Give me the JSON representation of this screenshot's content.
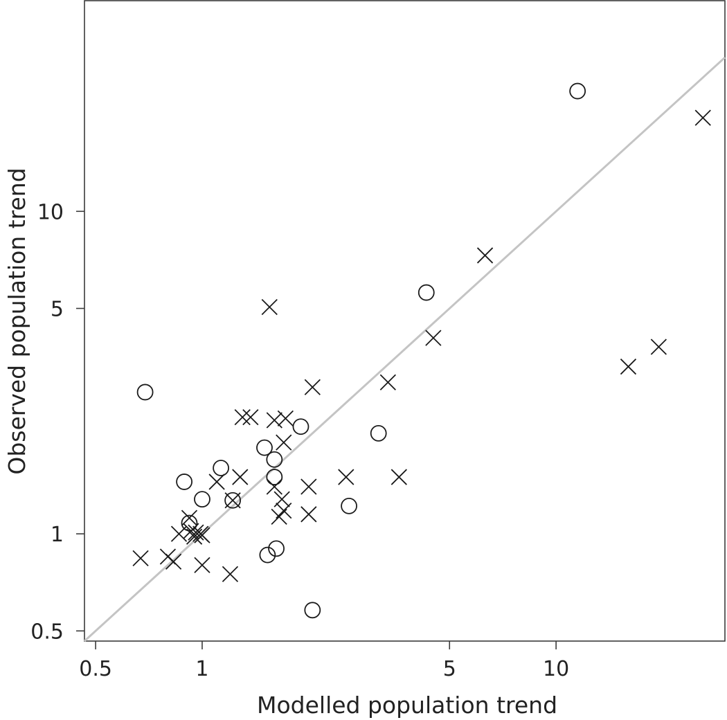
{
  "chart_data": {
    "type": "scatter",
    "xlabel": "Modelled population trend",
    "ylabel": "Observed population trend",
    "x_scale": "log",
    "y_scale": "log",
    "xlim": [
      0.465,
      30.0
    ],
    "ylim": [
      0.465,
      45.0
    ],
    "x_ticks": [
      {
        "value": 0.5,
        "label": "0.5"
      },
      {
        "value": 1,
        "label": "1"
      },
      {
        "value": 5,
        "label": "5"
      },
      {
        "value": 10,
        "label": "10"
      }
    ],
    "y_ticks": [
      {
        "value": 0.5,
        "label": "0.5"
      },
      {
        "value": 1,
        "label": "1"
      },
      {
        "value": 5,
        "label": "5"
      },
      {
        "value": 10,
        "label": "10"
      }
    ],
    "grid": false,
    "reference_line": {
      "type": "identity",
      "color": "#c4c4c4"
    },
    "marker_color": "#1a1a1a",
    "series": [
      {
        "marker": "circle",
        "points": [
          {
            "x": 11.5,
            "y": 23.6
          },
          {
            "x": 4.3,
            "y": 5.6
          },
          {
            "x": 0.69,
            "y": 2.75
          },
          {
            "x": 1.9,
            "y": 2.15
          },
          {
            "x": 3.15,
            "y": 2.05
          },
          {
            "x": 1.5,
            "y": 1.85
          },
          {
            "x": 1.6,
            "y": 1.7
          },
          {
            "x": 1.13,
            "y": 1.6
          },
          {
            "x": 1.6,
            "y": 1.5
          },
          {
            "x": 0.89,
            "y": 1.45
          },
          {
            "x": 1.0,
            "y": 1.28
          },
          {
            "x": 1.22,
            "y": 1.27
          },
          {
            "x": 2.6,
            "y": 1.22
          },
          {
            "x": 0.92,
            "y": 1.08
          },
          {
            "x": 1.62,
            "y": 0.9
          },
          {
            "x": 1.53,
            "y": 0.86
          },
          {
            "x": 2.05,
            "y": 0.58
          }
        ]
      },
      {
        "marker": "x",
        "points": [
          {
            "x": 26.0,
            "y": 19.5
          },
          {
            "x": 6.3,
            "y": 7.3
          },
          {
            "x": 1.55,
            "y": 5.05
          },
          {
            "x": 4.5,
            "y": 4.05
          },
          {
            "x": 19.5,
            "y": 3.8
          },
          {
            "x": 16.0,
            "y": 3.3
          },
          {
            "x": 2.05,
            "y": 2.85
          },
          {
            "x": 3.35,
            "y": 2.95
          },
          {
            "x": 1.3,
            "y": 2.3
          },
          {
            "x": 1.37,
            "y": 2.3
          },
          {
            "x": 1.6,
            "y": 2.25
          },
          {
            "x": 1.72,
            "y": 2.28
          },
          {
            "x": 1.7,
            "y": 1.92
          },
          {
            "x": 1.28,
            "y": 1.5
          },
          {
            "x": 1.1,
            "y": 1.45
          },
          {
            "x": 2.55,
            "y": 1.5
          },
          {
            "x": 3.6,
            "y": 1.5
          },
          {
            "x": 2.0,
            "y": 1.4
          },
          {
            "x": 1.6,
            "y": 1.4
          },
          {
            "x": 1.22,
            "y": 1.27
          },
          {
            "x": 1.68,
            "y": 1.28
          },
          {
            "x": 1.7,
            "y": 1.18
          },
          {
            "x": 1.65,
            "y": 1.13
          },
          {
            "x": 2.0,
            "y": 1.15
          },
          {
            "x": 0.92,
            "y": 1.12
          },
          {
            "x": 0.86,
            "y": 1.0
          },
          {
            "x": 0.93,
            "y": 1.02
          },
          {
            "x": 0.96,
            "y": 1.01
          },
          {
            "x": 0.99,
            "y": 1.0
          },
          {
            "x": 0.95,
            "y": 0.98
          },
          {
            "x": 1.0,
            "y": 0.99
          },
          {
            "x": 0.8,
            "y": 0.85
          },
          {
            "x": 0.83,
            "y": 0.82
          },
          {
            "x": 0.67,
            "y": 0.84
          },
          {
            "x": 1.0,
            "y": 0.8
          },
          {
            "x": 1.2,
            "y": 0.75
          }
        ]
      }
    ]
  }
}
